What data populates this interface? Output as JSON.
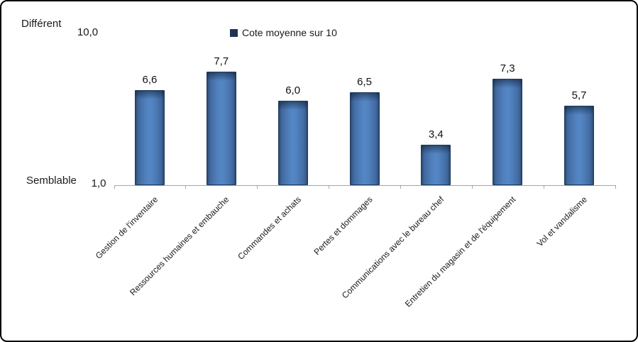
{
  "chart_data": {
    "type": "bar",
    "title": "",
    "legend": {
      "label": "Cote moyenne sur 10",
      "marker_color": "#1f3350",
      "position": "top-center"
    },
    "categories": [
      "Gestion de l'inventaire",
      "Ressources humaines et embauche",
      "Commandes et achats",
      "Pertes et dommages",
      "Communications avec le bureau chef",
      "Entretien du magasin et de l'équipement",
      "Vol et vandalisme"
    ],
    "series": [
      {
        "name": "Cote moyenne sur 10",
        "values": [
          6.6,
          7.7,
          6.0,
          6.5,
          3.4,
          7.3,
          5.7
        ],
        "labels": [
          "6,6",
          "7,7",
          "6,0",
          "6,5",
          "3,4",
          "7,3",
          "5,7"
        ]
      }
    ],
    "y_axis": {
      "min": 1.0,
      "max": 10.0,
      "min_label": "1,0",
      "max_label": "10,0"
    },
    "annotations": {
      "top_left": "Différent",
      "bottom_left": "Semblable"
    },
    "bar_color": "#4f81bd",
    "bar_edge_color": "#2a4a71",
    "axis_color": "#a6a6a6",
    "grid": false,
    "xlabel": "",
    "ylabel": ""
  }
}
